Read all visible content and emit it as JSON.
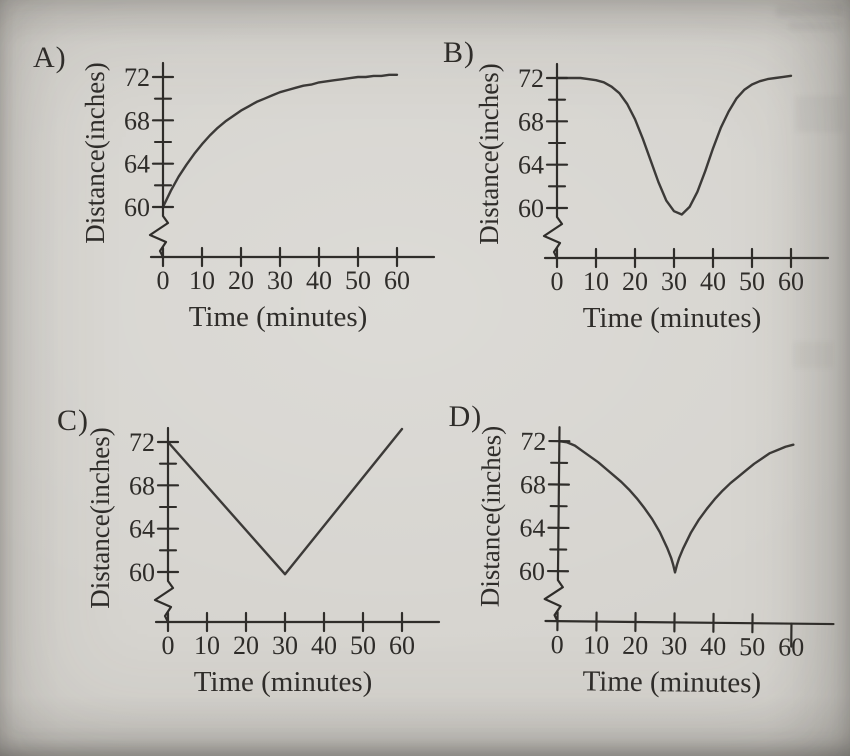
{
  "colors": {
    "paper": "#d6d4cf",
    "ink": "#2f2d2a"
  },
  "figure": {
    "panels": [
      "A)",
      "B)",
      "C)",
      "D)"
    ]
  },
  "chart_data": [
    {
      "panel": "A)",
      "type": "line",
      "title": "",
      "xlabel": "Time (minutes)",
      "ylabel": "Distance(inches)",
      "x_ticks": [
        0,
        10,
        20,
        30,
        40,
        50,
        60
      ],
      "y_major_ticks": [
        60,
        64,
        68,
        72
      ],
      "y_minor_ticks": [
        62,
        66,
        70
      ],
      "xlim": [
        0,
        60
      ],
      "ylim": [
        60,
        72
      ],
      "y_axis_break": true,
      "grid": false,
      "legend": false,
      "points": [
        [
          0,
          60
        ],
        [
          2,
          61.5
        ],
        [
          4,
          62.8
        ],
        [
          6,
          63.9
        ],
        [
          8,
          64.9
        ],
        [
          10,
          65.8
        ],
        [
          12,
          66.6
        ],
        [
          14,
          67.3
        ],
        [
          16,
          67.9
        ],
        [
          18,
          68.4
        ],
        [
          20,
          68.9
        ],
        [
          22,
          69.3
        ],
        [
          24,
          69.7
        ],
        [
          26,
          70.0
        ],
        [
          28,
          70.3
        ],
        [
          30,
          70.6
        ],
        [
          32,
          70.8
        ],
        [
          34,
          71.0
        ],
        [
          36,
          71.2
        ],
        [
          38,
          71.3
        ],
        [
          40,
          71.5
        ],
        [
          42,
          71.6
        ],
        [
          44,
          71.7
        ],
        [
          46,
          71.8
        ],
        [
          48,
          71.9
        ],
        [
          50,
          72.0
        ],
        [
          52,
          72.0
        ],
        [
          54,
          72.1
        ],
        [
          56,
          72.1
        ],
        [
          58,
          72.2
        ],
        [
          60,
          72.2
        ]
      ]
    },
    {
      "panel": "B)",
      "type": "line",
      "title": "",
      "xlabel": "Time (minutes)",
      "ylabel": "Distance(inches)",
      "x_ticks": [
        0,
        10,
        20,
        30,
        40,
        50,
        60
      ],
      "y_major_ticks": [
        60,
        64,
        68,
        72
      ],
      "y_minor_ticks": [
        62,
        66,
        70
      ],
      "xlim": [
        0,
        60
      ],
      "ylim": [
        60,
        72
      ],
      "y_axis_break": true,
      "grid": false,
      "legend": false,
      "points": [
        [
          0,
          72
        ],
        [
          2,
          72
        ],
        [
          4,
          72
        ],
        [
          6,
          72
        ],
        [
          8,
          71.9
        ],
        [
          10,
          71.8
        ],
        [
          12,
          71.6
        ],
        [
          14,
          71.2
        ],
        [
          16,
          70.6
        ],
        [
          18,
          69.6
        ],
        [
          20,
          68.2
        ],
        [
          22,
          66.4
        ],
        [
          24,
          64.4
        ],
        [
          26,
          62.4
        ],
        [
          28,
          60.7
        ],
        [
          30,
          59.7
        ],
        [
          32,
          59.4
        ],
        [
          34,
          60.1
        ],
        [
          36,
          61.5
        ],
        [
          38,
          63.4
        ],
        [
          40,
          65.5
        ],
        [
          42,
          67.4
        ],
        [
          44,
          68.9
        ],
        [
          46,
          70.1
        ],
        [
          48,
          70.9
        ],
        [
          50,
          71.4
        ],
        [
          52,
          71.7
        ],
        [
          54,
          71.9
        ],
        [
          56,
          72.0
        ],
        [
          58,
          72.1
        ],
        [
          60,
          72.2
        ]
      ]
    },
    {
      "panel": "C)",
      "type": "line",
      "title": "",
      "xlabel": "Time (minutes)",
      "ylabel": "Distance(inches)",
      "x_ticks": [
        0,
        10,
        20,
        30,
        40,
        50,
        60
      ],
      "y_major_ticks": [
        60,
        64,
        68,
        72
      ],
      "y_minor_ticks": [
        62,
        66,
        70
      ],
      "xlim": [
        0,
        60
      ],
      "ylim": [
        60,
        72
      ],
      "y_axis_break": true,
      "grid": false,
      "legend": false,
      "points": [
        [
          0,
          72
        ],
        [
          30,
          59.8
        ],
        [
          60,
          73.2
        ]
      ]
    },
    {
      "panel": "D)",
      "type": "line",
      "title": "",
      "xlabel": "Time (minutes)",
      "ylabel": "Distance(inches)",
      "x_ticks": [
        0,
        10,
        20,
        30,
        40,
        50,
        60
      ],
      "y_major_ticks": [
        60,
        64,
        68,
        72
      ],
      "y_minor_ticks": [
        62,
        66,
        70
      ],
      "xlim": [
        0,
        60
      ],
      "ylim": [
        60,
        72
      ],
      "y_axis_break": true,
      "grid": false,
      "legend": false,
      "points": [
        [
          0,
          72
        ],
        [
          2,
          71.9
        ],
        [
          4,
          71.6
        ],
        [
          6,
          71.1
        ],
        [
          8,
          70.6
        ],
        [
          10,
          70.1
        ],
        [
          12,
          69.5
        ],
        [
          14,
          68.9
        ],
        [
          16,
          68.3
        ],
        [
          18,
          67.6
        ],
        [
          20,
          66.8
        ],
        [
          22,
          65.9
        ],
        [
          24,
          64.9
        ],
        [
          26,
          63.7
        ],
        [
          28,
          62.2
        ],
        [
          29,
          61.3
        ],
        [
          29.5,
          60.7
        ],
        [
          30,
          60
        ],
        [
          30.5,
          60.7
        ],
        [
          31,
          61.3
        ],
        [
          32,
          62.2
        ],
        [
          34,
          63.7
        ],
        [
          36,
          64.9
        ],
        [
          38,
          65.9
        ],
        [
          40,
          66.8
        ],
        [
          42,
          67.6
        ],
        [
          44,
          68.3
        ],
        [
          46,
          68.9
        ],
        [
          48,
          69.5
        ],
        [
          50,
          70.1
        ],
        [
          52,
          70.6
        ],
        [
          54,
          71.1
        ],
        [
          56,
          71.4
        ],
        [
          58,
          71.7
        ],
        [
          60,
          71.9
        ]
      ]
    }
  ]
}
